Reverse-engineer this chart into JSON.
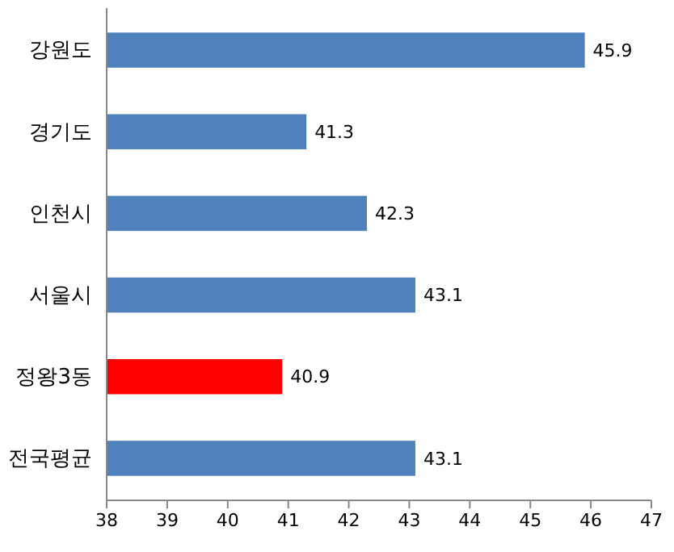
{
  "chart_data": {
    "type": "bar",
    "orientation": "horizontal",
    "categories": [
      "강원도",
      "경기도",
      "인천시",
      "서울시",
      "정왕3동",
      "전국평균"
    ],
    "values": [
      45.9,
      41.3,
      42.3,
      43.1,
      40.9,
      43.1
    ],
    "colors": [
      "#4f81bd",
      "#4f81bd",
      "#4f81bd",
      "#4f81bd",
      "#ff0000",
      "#4f81bd"
    ],
    "xlim": [
      38,
      47
    ],
    "xticks": [
      38,
      39,
      40,
      41,
      42,
      43,
      44,
      45,
      46,
      47
    ],
    "data_labels": true
  }
}
